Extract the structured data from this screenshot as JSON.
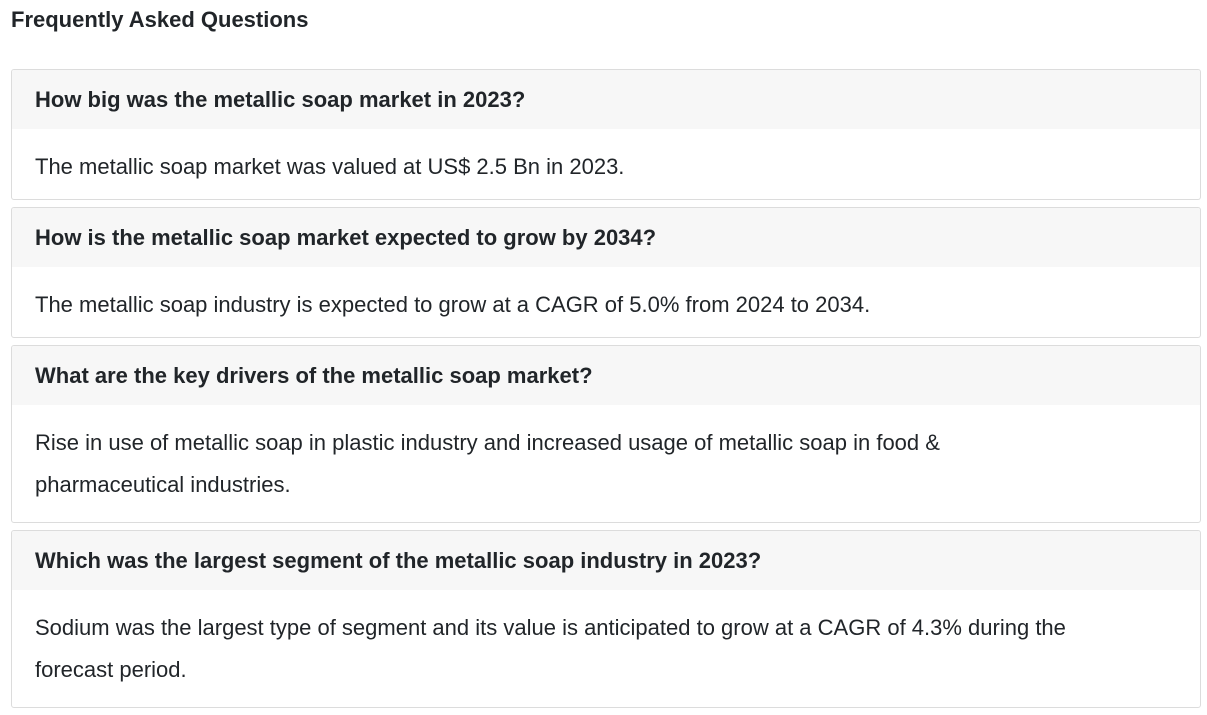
{
  "page": {
    "title": "Frequently Asked Questions"
  },
  "faq": [
    {
      "question": "How big was the metallic soap market in 2023?",
      "answer": "The metallic soap market was valued at US$ 2.5 Bn in 2023."
    },
    {
      "question": "How is the metallic soap market expected to grow by 2034?",
      "answer": "The metallic soap industry is expected to grow at a CAGR of 5.0% from 2024 to 2034."
    },
    {
      "question": "What are the key drivers of the metallic soap market?",
      "answer": "Rise in use of metallic soap in plastic industry and increased usage of metallic soap in food & pharmaceutical industries."
    },
    {
      "question": "Which was the largest segment of the metallic soap industry in 2023?",
      "answer": "Sodium was the largest type of segment and its value is anticipated to grow at a CAGR of 4.3% during the forecast period."
    }
  ]
}
